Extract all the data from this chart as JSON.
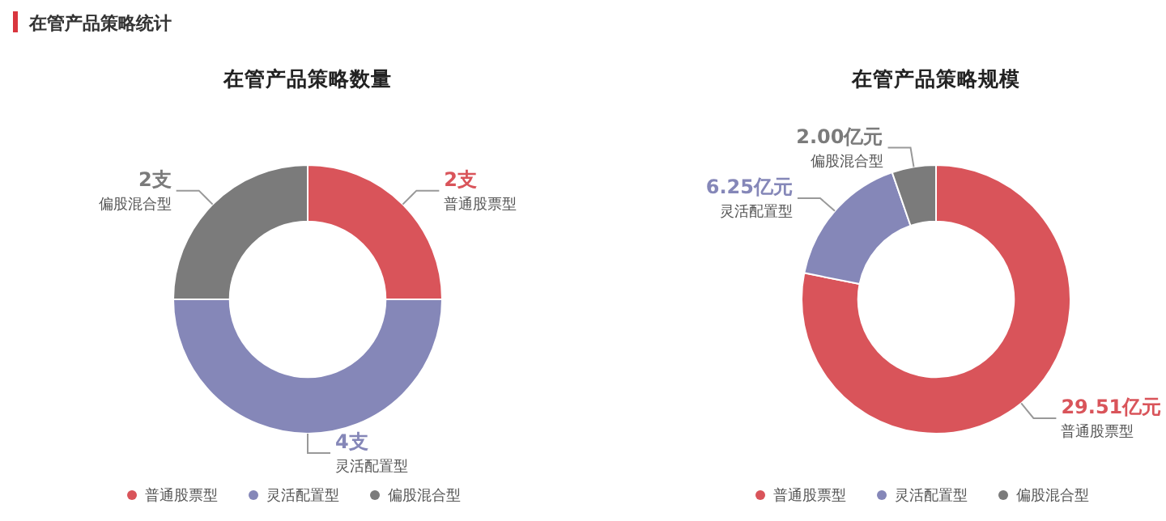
{
  "chart_data": [
    {
      "type": "donut",
      "title": "在管产品策略数量",
      "annotations": [
        "在管产品策略统计"
      ],
      "categories": [
        "普通股票型",
        "灵活配置型",
        "偏股混合型"
      ],
      "values": [
        2,
        4,
        2
      ],
      "value_labels": [
        "2支",
        "4支",
        "2支"
      ],
      "colors": [
        "#d9545a",
        "#8587b8",
        "#7b7b7b"
      ],
      "legend": "bottom"
    },
    {
      "type": "donut",
      "title": "在管产品策略规模",
      "categories": [
        "普通股票型",
        "灵活配置型",
        "偏股混合型"
      ],
      "values": [
        29.51,
        6.25,
        2.0
      ],
      "value_labels": [
        "29.51亿元",
        "6.25亿元",
        "2.00亿元"
      ],
      "colors": [
        "#d9545a",
        "#8587b8",
        "#7b7b7b"
      ],
      "legend": "bottom"
    }
  ]
}
